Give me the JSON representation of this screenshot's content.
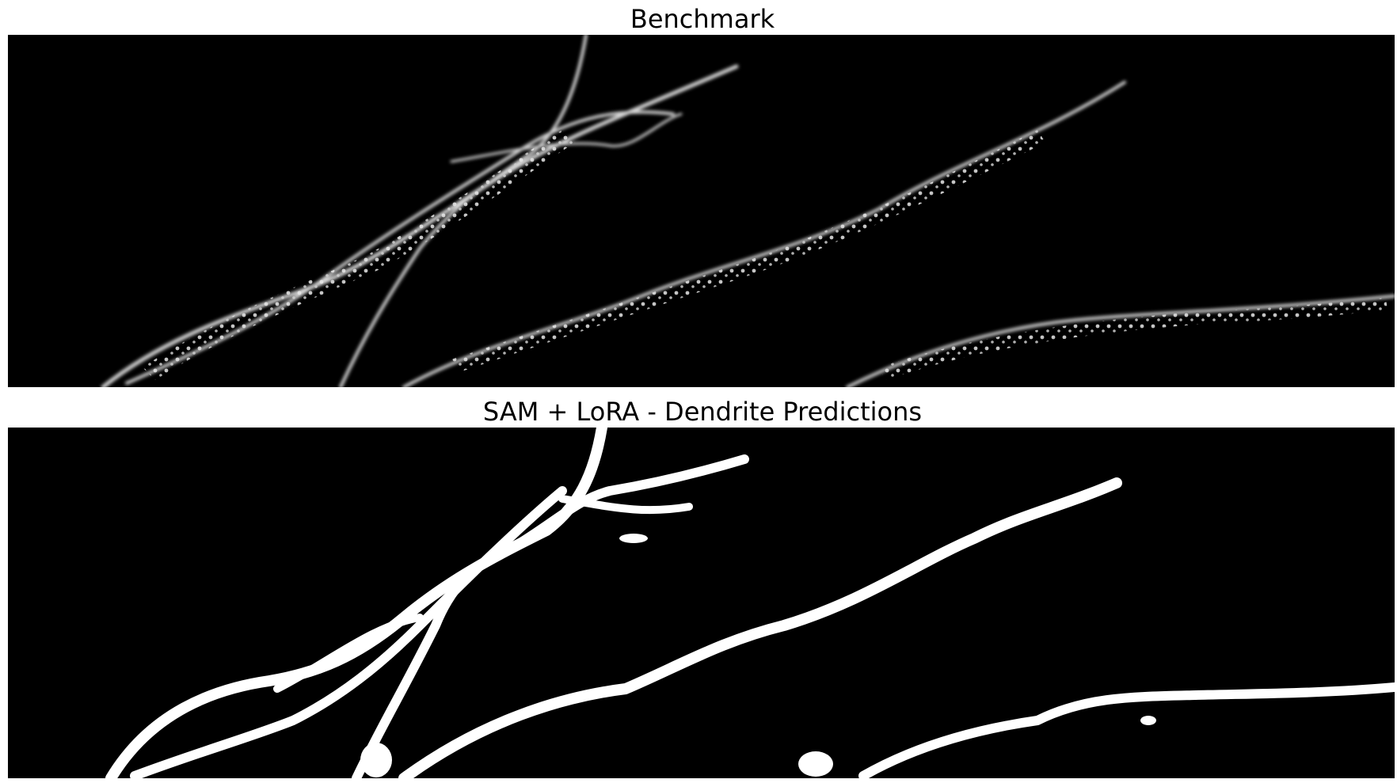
{
  "figure": {
    "panels": [
      {
        "title": "Benchmark",
        "kind": "grayscale-micrograph"
      },
      {
        "title": "SAM + LoRA - Dendrite Predictions",
        "kind": "binary-segmentation-mask"
      }
    ]
  },
  "colors": {
    "background": "#000000",
    "signal": "#ffffff",
    "page": "#ffffff"
  }
}
